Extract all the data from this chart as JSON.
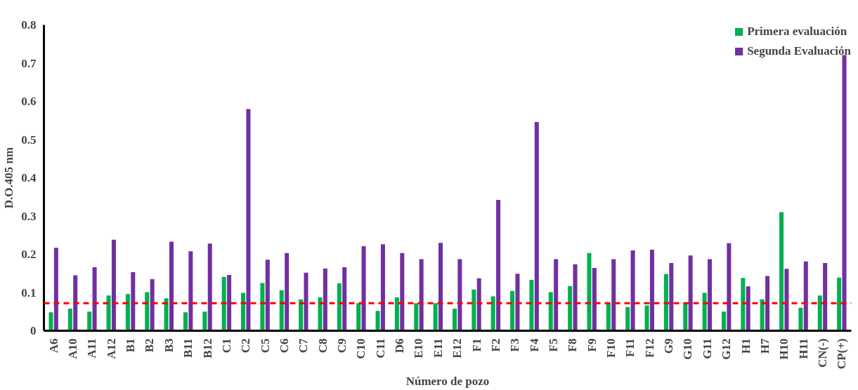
{
  "chart_data": {
    "type": "bar",
    "xlabel": "Número de pozo",
    "ylabel": "D.O.405 nm",
    "categories": [
      "A6",
      "A10",
      "A11",
      "A12",
      "B1",
      "B2",
      "B3",
      "B11",
      "B12",
      "C1",
      "C2",
      "C5",
      "C6",
      "C7",
      "C8",
      "C9",
      "C10",
      "C11",
      "D6",
      "E10",
      "E11",
      "E12",
      "F1",
      "F2",
      "F3",
      "F4",
      "F5",
      "F8",
      "F9",
      "F10",
      "F11",
      "F12",
      "G9",
      "G10",
      "G11",
      "G12",
      "H1",
      "H7",
      "H10",
      "H11",
      "CN(-)",
      "CP(+)"
    ],
    "series": [
      {
        "name": "Primera evaluación",
        "color": "#00b050",
        "values": [
          0.048,
          0.058,
          0.05,
          0.092,
          0.096,
          0.101,
          0.085,
          0.048,
          0.05,
          0.141,
          0.099,
          0.125,
          0.106,
          0.082,
          0.087,
          0.124,
          0.072,
          0.052,
          0.087,
          0.072,
          0.072,
          0.058,
          0.108,
          0.09,
          0.104,
          0.133,
          0.101,
          0.117,
          0.203,
          0.072,
          0.062,
          0.066,
          0.148,
          0.072,
          0.099,
          0.05,
          0.138,
          0.082,
          0.31,
          0.06,
          0.092,
          0.139
        ]
      },
      {
        "name": "Segunda Evaluación",
        "color": "#7030a0",
        "values": [
          0.217,
          0.145,
          0.166,
          0.238,
          0.153,
          0.135,
          0.233,
          0.208,
          0.228,
          0.146,
          0.58,
          0.186,
          0.203,
          0.152,
          0.163,
          0.166,
          0.221,
          0.226,
          0.203,
          0.187,
          0.23,
          0.187,
          0.137,
          0.342,
          0.149,
          0.546,
          0.187,
          0.174,
          0.164,
          0.187,
          0.21,
          0.212,
          0.177,
          0.197,
          0.187,
          0.229,
          0.116,
          0.143,
          0.162,
          0.181,
          0.177,
          0.721
        ]
      }
    ],
    "ylim": [
      0,
      0.8
    ],
    "yticks": [
      0,
      0.1,
      0.2,
      0.3,
      0.4,
      0.5,
      0.6,
      0.7,
      0.8
    ],
    "ref_lines": [
      {
        "axis": "y",
        "value": 0.072,
        "color": "#ff0000",
        "line_style": "dashed"
      }
    ],
    "grid": false,
    "legend": "top right"
  }
}
